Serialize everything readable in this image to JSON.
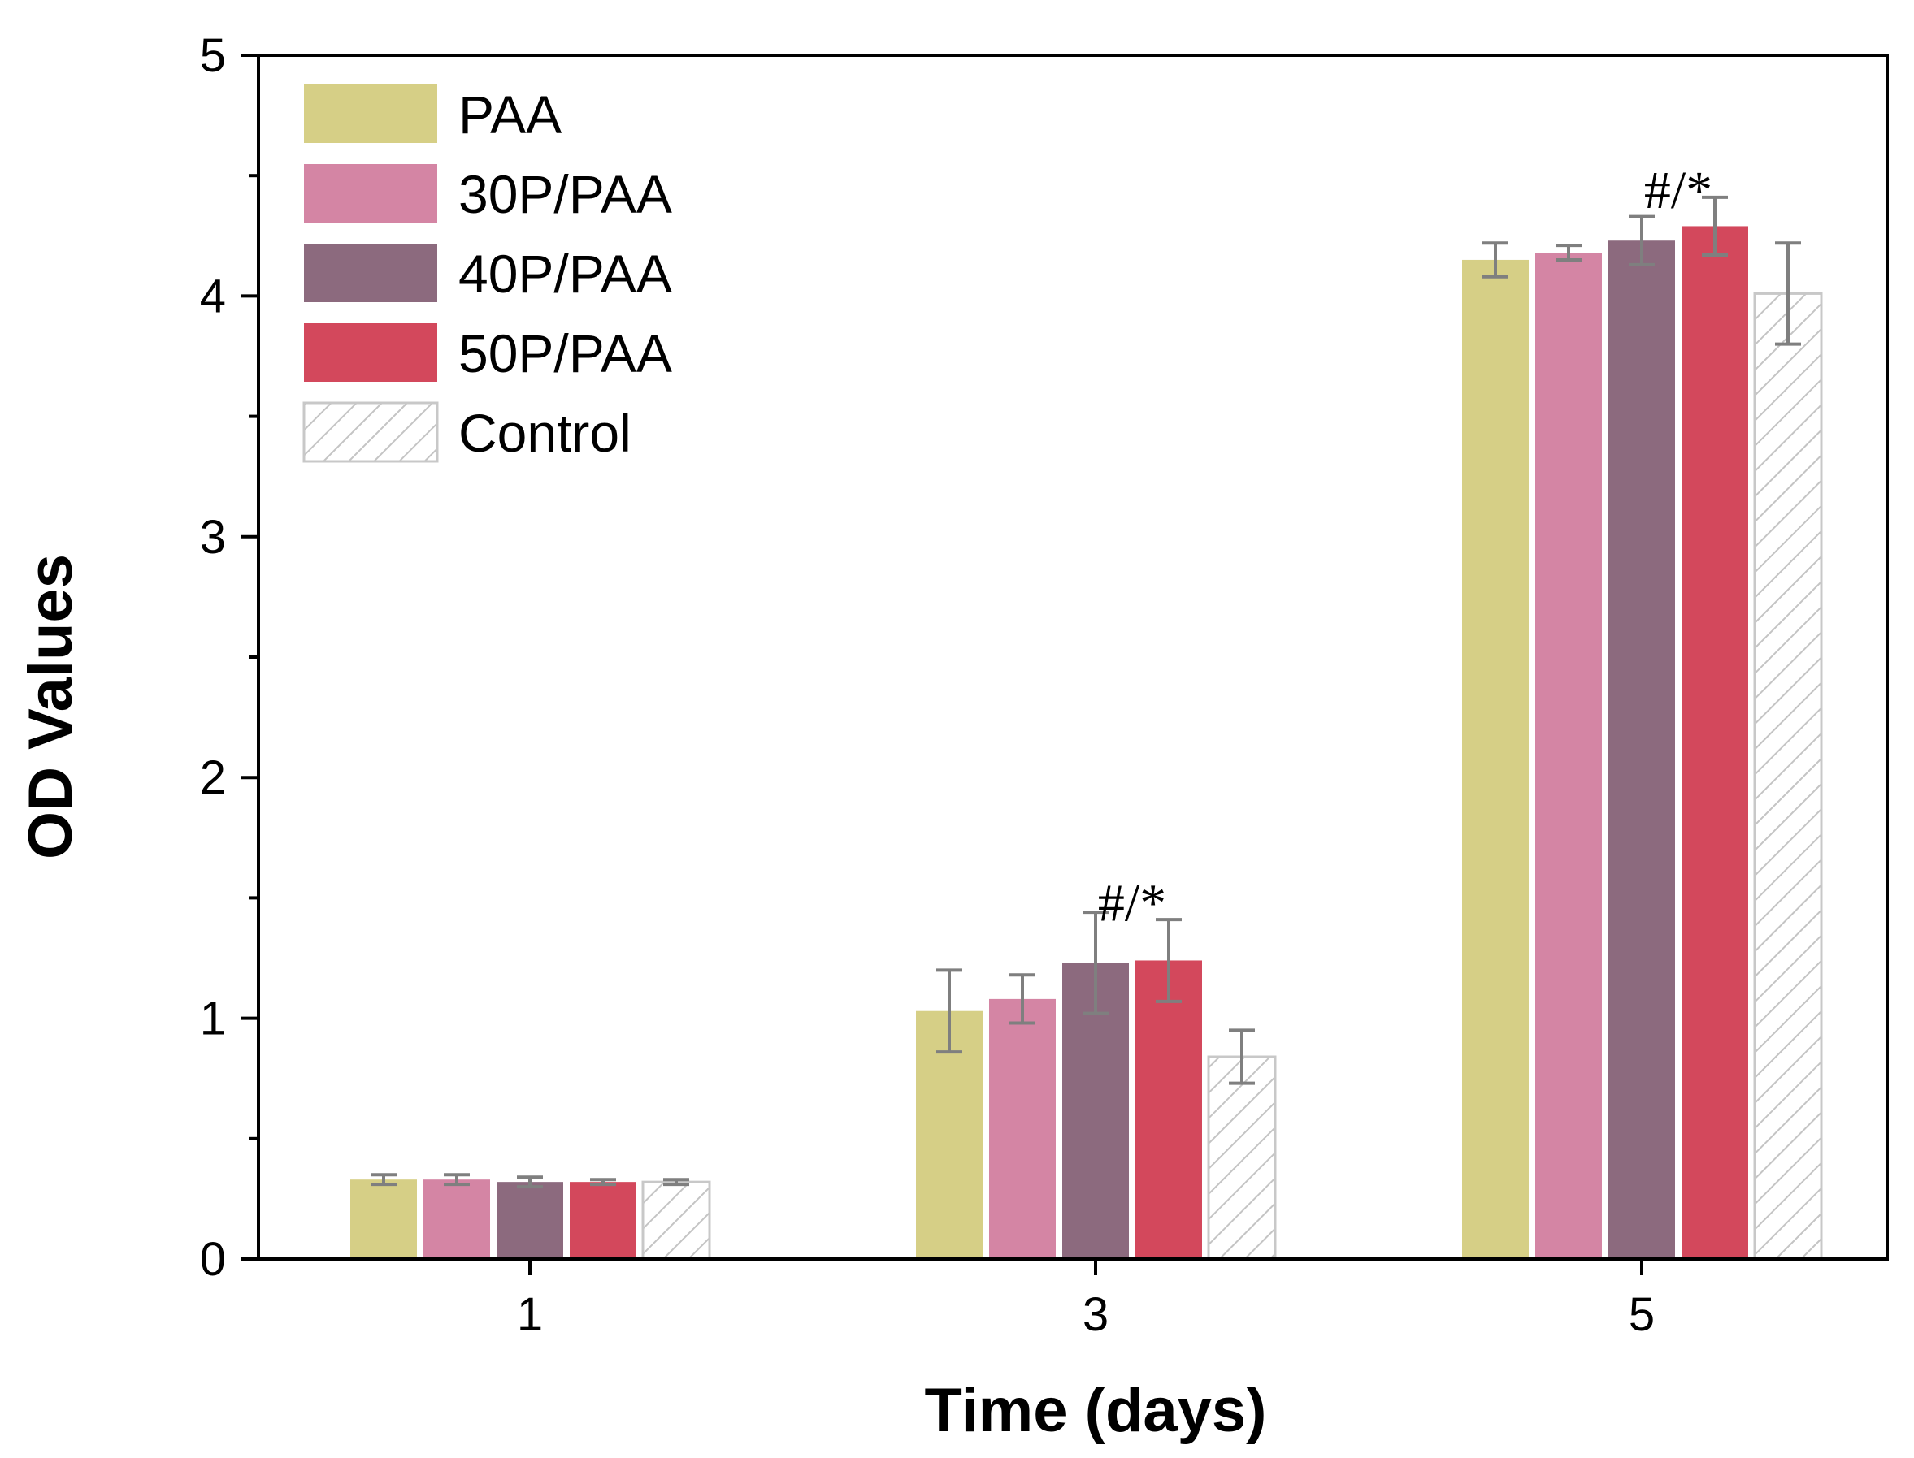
{
  "chart_data": {
    "type": "bar",
    "title": "",
    "xlabel": "Time (days)",
    "ylabel": "OD Values",
    "categories": [
      "1",
      "3",
      "5"
    ],
    "ylim": [
      0,
      5
    ],
    "yticks": [
      "0",
      "1",
      "2",
      "3",
      "4",
      "5"
    ],
    "grid": false,
    "legend_position": "top-left",
    "series": [
      {
        "name": "PAA",
        "color": "#d6cf86",
        "hatch": false,
        "values": [
          0.33,
          1.03,
          4.15
        ],
        "errors": [
          0.02,
          0.17,
          0.07
        ]
      },
      {
        "name": "30P/PAA",
        "color": "#d485a4",
        "hatch": false,
        "values": [
          0.33,
          1.08,
          4.18
        ],
        "errors": [
          0.02,
          0.1,
          0.03
        ]
      },
      {
        "name": "40P/PAA",
        "color": "#8c6a7e",
        "hatch": false,
        "values": [
          0.32,
          1.23,
          4.23
        ],
        "errors": [
          0.02,
          0.21,
          0.1
        ]
      },
      {
        "name": "50P/PAA",
        "color": "#d3485c",
        "hatch": false,
        "values": [
          0.32,
          1.24,
          4.29
        ],
        "errors": [
          0.01,
          0.17,
          0.12
        ]
      },
      {
        "name": "Control",
        "color": "#ffffff",
        "hatch": true,
        "values": [
          0.32,
          0.84,
          4.01
        ],
        "errors": [
          0.01,
          0.11,
          0.21
        ]
      }
    ],
    "annotations": [
      {
        "text": "#/*",
        "category": "3",
        "y": 1.48
      },
      {
        "text": "#/*",
        "category": "5",
        "y": 4.44
      }
    ]
  }
}
